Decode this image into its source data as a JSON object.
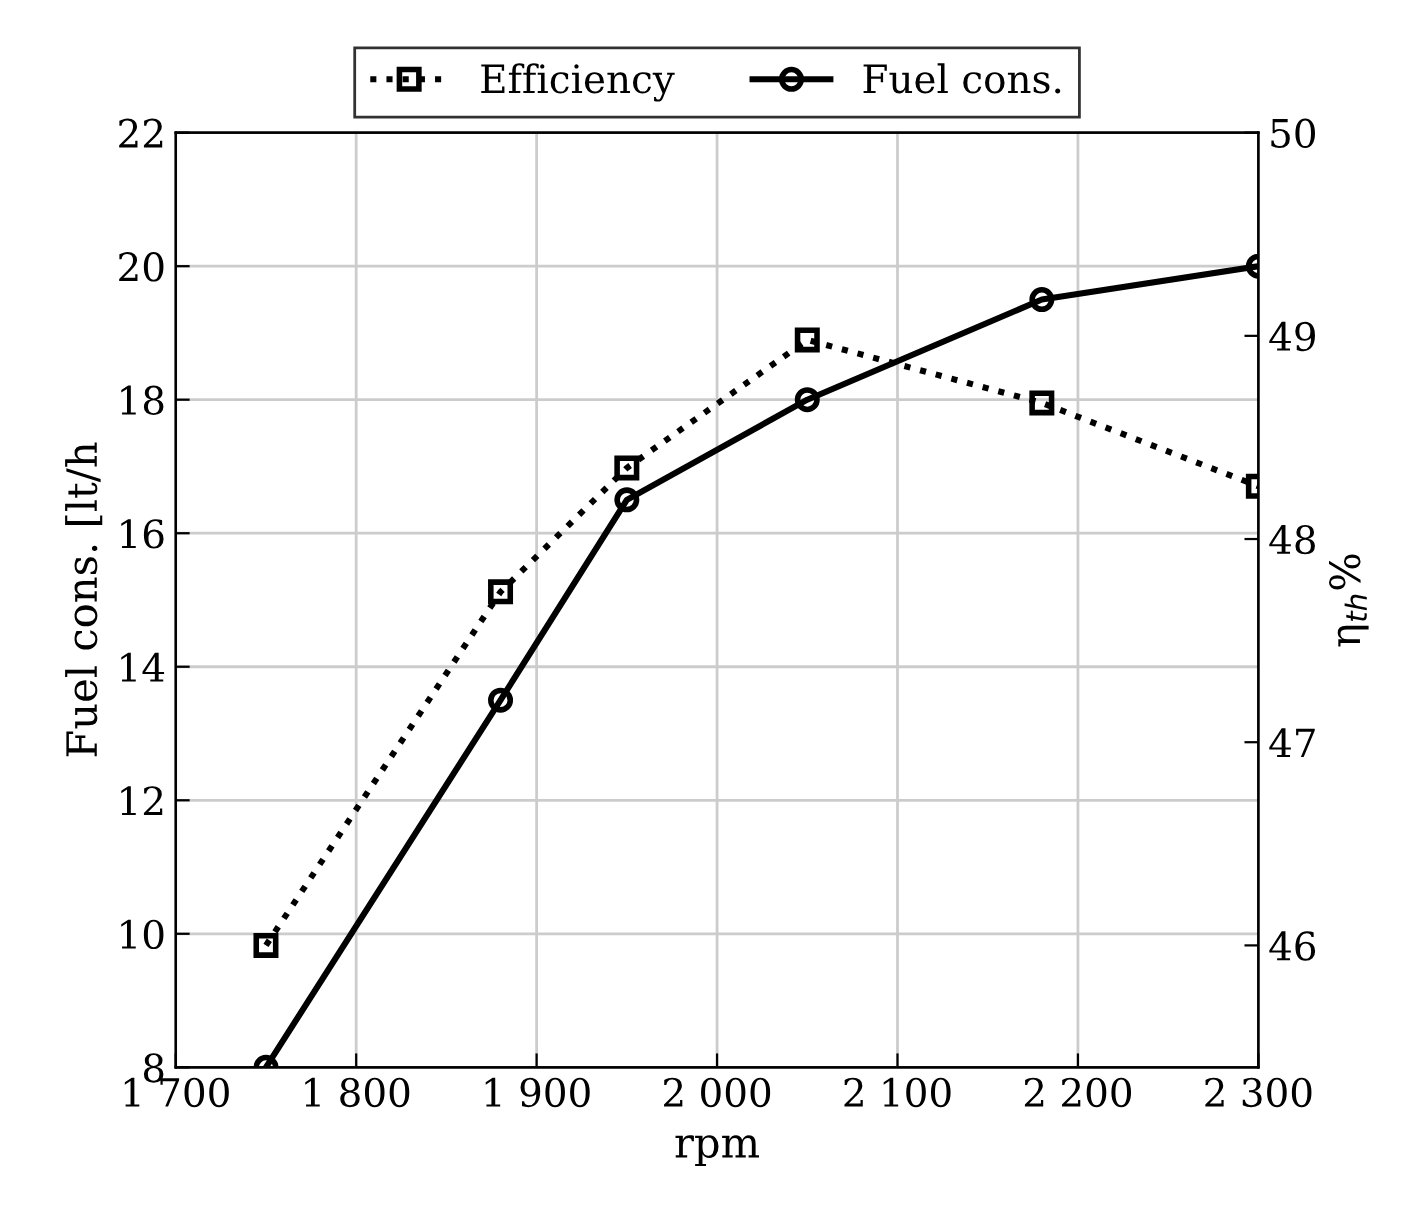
{
  "chart_data": {
    "type": "line",
    "xlabel": "rpm",
    "ylabel": "Fuel cons. [lt/h",
    "y2label": "η$_{th}$%",
    "x": [
      1750,
      1880,
      1950,
      2050,
      2180,
      2300
    ],
    "series": [
      {
        "name": "Efficiency",
        "color": "#000000",
        "axis": "y2",
        "line_style": "dotted",
        "marker": "square",
        "values": [
          46.0,
          47.74,
          48.35,
          48.98,
          48.67,
          48.26
        ]
      },
      {
        "name": "Fuel cons.",
        "color": "#000000",
        "line_style": "solid",
        "marker": "circle",
        "values": [
          8,
          13.5,
          16.5,
          18,
          19.5,
          20
        ]
      }
    ],
    "xlim": [
      1700,
      2300
    ],
    "xticks": [
      {
        "value": 1700,
        "label": "1 700"
      },
      {
        "value": 1800,
        "label": "1 800"
      },
      {
        "value": 1900,
        "label": "1 900"
      },
      {
        "value": 2000,
        "label": "2 000"
      },
      {
        "value": 2100,
        "label": "2 100"
      },
      {
        "value": 2200,
        "label": "2 200"
      },
      {
        "value": 2300,
        "label": "2 300"
      }
    ],
    "ylim": [
      8,
      22
    ],
    "yticks": [
      8,
      10,
      12,
      14,
      16,
      18,
      20,
      22
    ],
    "y2lim": [
      45.4,
      50
    ],
    "y2ticks": [
      46,
      47,
      48,
      49,
      50
    ],
    "grid": true,
    "legend": "top"
  }
}
